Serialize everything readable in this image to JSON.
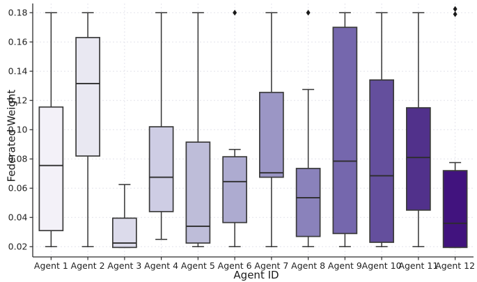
{
  "chart_data": {
    "type": "boxplot",
    "title": "",
    "xlabel": "Agent ID",
    "ylabel": "Federated Weight",
    "ylim": [
      0.013,
      0.1863
    ],
    "yticks": [
      0.02,
      0.04,
      0.06,
      0.08,
      0.1,
      0.12,
      0.14,
      0.16,
      0.18
    ],
    "grid": "dashed, horizontal and vertical",
    "legend": "none",
    "categories": [
      "Agent 1",
      "Agent 2",
      "Agent 3",
      "Agent 4",
      "Agent 5",
      "Agent 6",
      "Agent 7",
      "Agent 8",
      "Agent 9",
      "Agent 10",
      "Agent 11",
      "Agent 12"
    ],
    "series": [
      {
        "label": "Agent 1",
        "color": "#f3f1f8",
        "whisker_low": 0.02,
        "q1": 0.031,
        "median": 0.0755,
        "q3": 0.1155,
        "whisker_high": 0.18,
        "outliers": []
      },
      {
        "label": "Agent 2",
        "color": "#e9e8f2",
        "whisker_low": 0.02,
        "q1": 0.082,
        "median": 0.1315,
        "q3": 0.163,
        "whisker_high": 0.18,
        "outliers": []
      },
      {
        "label": "Agent 3",
        "color": "#dcdbeb",
        "whisker_low": 0.0195,
        "q1": 0.0195,
        "median": 0.0225,
        "q3": 0.0395,
        "whisker_high": 0.0625,
        "outliers": []
      },
      {
        "label": "Agent 4",
        "color": "#cecde4",
        "whisker_low": 0.025,
        "q1": 0.044,
        "median": 0.0675,
        "q3": 0.102,
        "whisker_high": 0.18,
        "outliers": []
      },
      {
        "label": "Agent 5",
        "color": "#bebdd9",
        "whisker_low": 0.02,
        "q1": 0.0225,
        "median": 0.034,
        "q3": 0.0915,
        "whisker_high": 0.18,
        "outliers": []
      },
      {
        "label": "Agent 6",
        "color": "#adabd0",
        "whisker_low": 0.02,
        "q1": 0.0365,
        "median": 0.0645,
        "q3": 0.0815,
        "whisker_high": 0.0865,
        "outliers": [
          0.18
        ]
      },
      {
        "label": "Agent 7",
        "color": "#9b96c5",
        "whisker_low": 0.02,
        "q1": 0.0675,
        "median": 0.0705,
        "q3": 0.1255,
        "whisker_high": 0.18,
        "outliers": []
      },
      {
        "label": "Agent 8",
        "color": "#8a82bb",
        "whisker_low": 0.02,
        "q1": 0.027,
        "median": 0.0535,
        "q3": 0.0735,
        "whisker_high": 0.1275,
        "outliers": [
          0.18
        ]
      },
      {
        "label": "Agent 9",
        "color": "#7567ad",
        "whisker_low": 0.02,
        "q1": 0.029,
        "median": 0.0785,
        "q3": 0.17,
        "whisker_high": 0.18,
        "outliers": []
      },
      {
        "label": "Agent 10",
        "color": "#644f9d",
        "whisker_low": 0.02,
        "q1": 0.023,
        "median": 0.0685,
        "q3": 0.134,
        "whisker_high": 0.18,
        "outliers": []
      },
      {
        "label": "Agent 11",
        "color": "#51318b",
        "whisker_low": 0.02,
        "q1": 0.045,
        "median": 0.081,
        "q3": 0.115,
        "whisker_high": 0.18,
        "outliers": []
      },
      {
        "label": "Agent 12",
        "color": "#41137e",
        "whisker_low": 0.0195,
        "q1": 0.0195,
        "median": 0.036,
        "q3": 0.072,
        "whisker_high": 0.0775,
        "outliers": [
          0.179,
          0.1825
        ]
      }
    ],
    "style": {
      "grid_color": "#e4e3ec",
      "spine_color": "#2b2b2b",
      "box_edge_color": "#3a3a3a",
      "median_color": "#2d2d2d",
      "whisker_color": "#343434",
      "outlier_color": "#1a1a1a",
      "tick_label_color": "#1f1f1f"
    }
  }
}
